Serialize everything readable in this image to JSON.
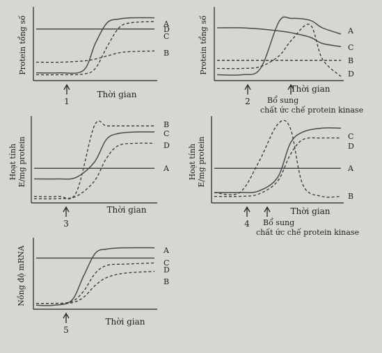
{
  "chart_data": [
    {
      "type": "line",
      "ylabel": "Protein tổng số",
      "xlabel": "Thời gian",
      "marker": "1",
      "x": [
        0,
        2,
        4,
        5,
        6,
        7,
        8,
        10
      ],
      "series": [
        {
          "name": "A",
          "values": [
            0.08,
            0.08,
            0.12,
            0.55,
            0.88,
            0.94,
            0.96,
            0.96
          ],
          "dash": false
        },
        {
          "name": "D",
          "values": [
            0.05,
            0.05,
            0.06,
            0.15,
            0.5,
            0.8,
            0.88,
            0.9
          ],
          "dash": true
        },
        {
          "name": "C",
          "values": [
            0.78,
            0.78,
            0.78,
            0.78,
            0.78,
            0.78,
            0.78,
            0.78
          ],
          "dash": false
        },
        {
          "name": "B",
          "values": [
            0.25,
            0.25,
            0.27,
            0.3,
            0.35,
            0.4,
            0.42,
            0.43
          ],
          "dash": true
        }
      ]
    },
    {
      "type": "line",
      "ylabel": "Protein tổng số",
      "xlabel": "Thời gian",
      "marker": "2",
      "marker2": "Bổ sung chất ức chế protein kinase",
      "x": [
        0,
        2,
        3.5,
        5,
        6,
        7.5,
        8.5,
        10
      ],
      "series": [
        {
          "name": "A",
          "values": [
            0.05,
            0.05,
            0.15,
            0.9,
            0.95,
            0.92,
            0.8,
            0.7
          ],
          "dash": false
        },
        {
          "name": "C",
          "values": [
            0.8,
            0.8,
            0.78,
            0.75,
            0.72,
            0.65,
            0.55,
            0.5
          ],
          "dash": false
        },
        {
          "name": "B",
          "values": [
            0.28,
            0.28,
            0.28,
            0.28,
            0.28,
            0.28,
            0.28,
            0.28
          ],
          "dash": true
        },
        {
          "name": "D",
          "values": [
            0.15,
            0.15,
            0.18,
            0.35,
            0.6,
            0.85,
            0.3,
            0.02
          ],
          "dash": true
        }
      ]
    },
    {
      "type": "line",
      "ylabel": "Hoạt tính E/mg protein",
      "xlabel": "Thời gian",
      "marker": "3",
      "x": [
        0,
        2,
        3.5,
        5,
        6,
        7,
        8.5,
        10
      ],
      "series": [
        {
          "name": "B",
          "values": [
            0.05,
            0.05,
            0.1,
            0.98,
            0.98,
            0.98,
            0.98,
            0.98
          ],
          "dash": true
        },
        {
          "name": "C",
          "values": [
            0.28,
            0.28,
            0.3,
            0.5,
            0.8,
            0.88,
            0.9,
            0.9
          ],
          "dash": false
        },
        {
          "name": "D",
          "values": [
            0.02,
            0.02,
            0.05,
            0.25,
            0.55,
            0.72,
            0.75,
            0.75
          ],
          "dash": true
        },
        {
          "name": "A",
          "values": [
            0.42,
            0.42,
            0.42,
            0.42,
            0.42,
            0.42,
            0.42,
            0.42
          ],
          "dash": false
        }
      ]
    },
    {
      "type": "line",
      "ylabel": "Hoạt tính E/mg protein",
      "xlabel": "Thời gian",
      "marker": "4",
      "marker2": "Bổ sung chất ức chế protein kinase",
      "x": [
        0,
        2,
        3.5,
        5,
        6,
        7,
        8.5,
        10
      ],
      "series": [
        {
          "name": "C",
          "values": [
            0.1,
            0.1,
            0.12,
            0.3,
            0.75,
            0.9,
            0.95,
            0.95
          ],
          "dash": false
        },
        {
          "name": "D",
          "values": [
            0.05,
            0.05,
            0.08,
            0.25,
            0.6,
            0.8,
            0.82,
            0.82
          ],
          "dash": true
        },
        {
          "name": "A",
          "values": [
            0.42,
            0.42,
            0.42,
            0.42,
            0.42,
            0.42,
            0.42,
            0.42
          ],
          "dash": false
        },
        {
          "name": "B",
          "values": [
            0.1,
            0.1,
            0.5,
            1.0,
            0.95,
            0.2,
            0.05,
            0.05
          ],
          "dash": true
        }
      ]
    },
    {
      "type": "line",
      "ylabel": "Nồng độ mRNA",
      "xlabel": "Thời gian",
      "marker": "5",
      "x": [
        0,
        1.5,
        3,
        4,
        5,
        6,
        7.5,
        10
      ],
      "series": [
        {
          "name": "A",
          "values": [
            0.02,
            0.02,
            0.1,
            0.5,
            0.88,
            0.95,
            0.97,
            0.97
          ],
          "dash": false
        },
        {
          "name": "C",
          "values": [
            0.8,
            0.8,
            0.8,
            0.8,
            0.8,
            0.8,
            0.8,
            0.8
          ],
          "dash": false
        },
        {
          "name": "D",
          "values": [
            0.05,
            0.05,
            0.08,
            0.25,
            0.55,
            0.68,
            0.7,
            0.72
          ],
          "dash": true
        },
        {
          "name": "B",
          "values": [
            0.05,
            0.05,
            0.06,
            0.15,
            0.35,
            0.48,
            0.55,
            0.58
          ],
          "dash": true
        }
      ]
    }
  ]
}
